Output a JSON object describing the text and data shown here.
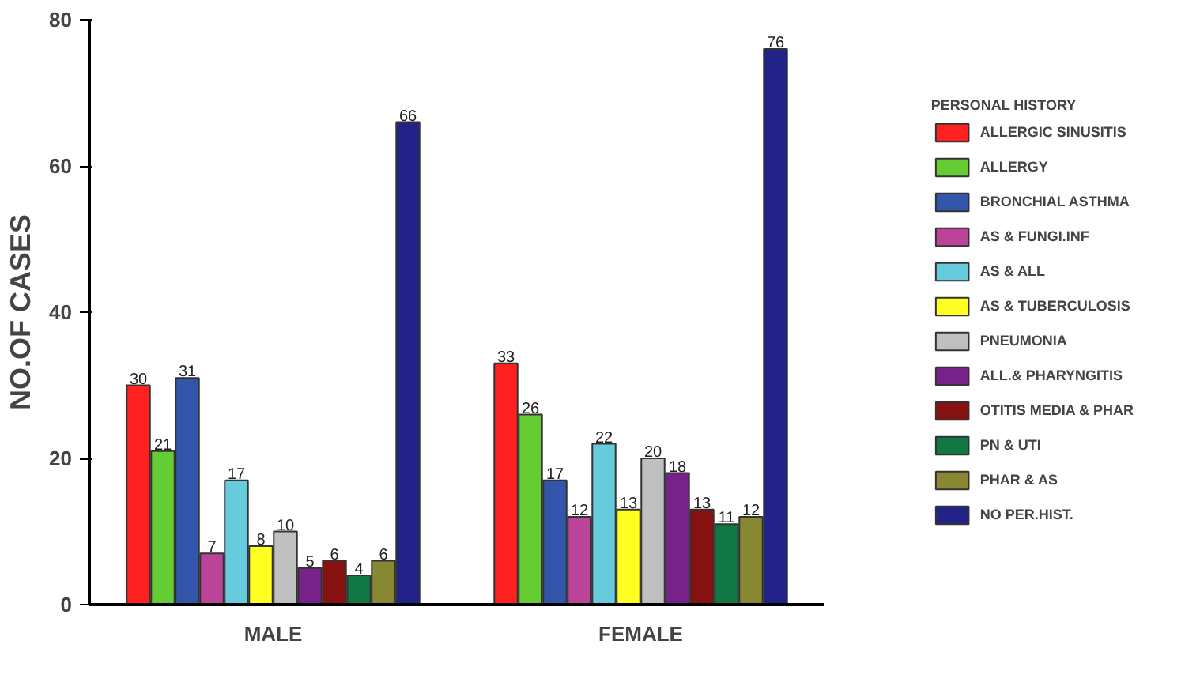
{
  "chart_data": {
    "type": "bar",
    "ylabel": "NO.OF CASES",
    "legend_title": "PERSONAL HISTORY",
    "categories": [
      "MALE",
      "FEMALE"
    ],
    "ylim": [
      0,
      80
    ],
    "yticks": [
      0,
      20,
      40,
      60,
      80
    ],
    "grid": false,
    "legend": "right",
    "data_labels": true,
    "series": [
      {
        "name": "ALLERGIC SINUSITIS",
        "color": "#ff2020",
        "values": [
          30,
          33
        ]
      },
      {
        "name": "ALLERGY",
        "color": "#66cc33",
        "values": [
          21,
          26
        ]
      },
      {
        "name": "BRONCHIAL ASTHMA",
        "color": "#3355aa",
        "values": [
          31,
          17
        ]
      },
      {
        "name": "AS & FUNGI.INF",
        "color": "#bb4499",
        "values": [
          7,
          12
        ]
      },
      {
        "name": "AS & ALL",
        "color": "#66ccdd",
        "values": [
          17,
          22
        ]
      },
      {
        "name": "AS & TUBERCULOSIS",
        "color": "#ffff22",
        "values": [
          8,
          13
        ]
      },
      {
        "name": "PNEUMONIA",
        "color": "#c0c0c0",
        "values": [
          10,
          20
        ]
      },
      {
        "name": "ALL.& PHARYNGITIS",
        "color": "#772288",
        "values": [
          5,
          18
        ]
      },
      {
        "name": "OTITIS MEDIA & PHAR",
        "color": "#881111",
        "values": [
          6,
          13
        ]
      },
      {
        "name": "PN & UTI",
        "color": "#117744",
        "values": [
          4,
          11
        ]
      },
      {
        "name": "PHAR & AS",
        "color": "#888833",
        "values": [
          6,
          12
        ]
      },
      {
        "name": "NO PER.HIST.",
        "color": "#222288",
        "values": [
          66,
          76
        ]
      }
    ]
  }
}
